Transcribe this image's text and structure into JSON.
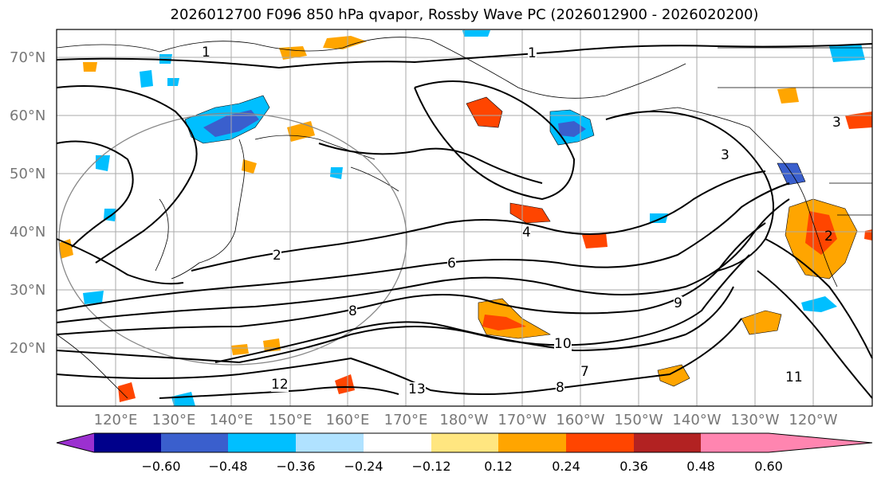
{
  "title": "2026012700 F096 850 hPa qvapor, Rossby Wave PC (2026012900 - 2026020200)",
  "lat_labels": [
    "70°N",
    "60°N",
    "50°N",
    "40°N",
    "30°N",
    "20°N"
  ],
  "lon_labels": [
    "120°E",
    "130°E",
    "140°E",
    "150°E",
    "160°E",
    "170°E",
    "180°W",
    "170°W",
    "160°W",
    "150°W",
    "140°W",
    "130°W",
    "120°W"
  ],
  "colorbar": {
    "ticks": [
      "−0.60",
      "−0.48",
      "−0.36",
      "−0.24",
      "−0.12",
      "0.12",
      "0.24",
      "0.36",
      "0.48",
      "0.60"
    ],
    "colors": [
      "#9b30d0",
      "#00008b",
      "#3a5fcd",
      "#00bfff",
      "#b0e2ff",
      "#ffffff",
      "#ffe680",
      "#ffa500",
      "#ff4500",
      "#b22222",
      "#ff85b0"
    ]
  },
  "contour_labels": [
    "1",
    "1",
    "2",
    "2",
    "3",
    "3",
    "4",
    "6",
    "8",
    "9",
    "10",
    "11",
    "12",
    "13",
    "7",
    "8"
  ],
  "colors": {
    "contour": "#000000",
    "grid": "#aaaaaa",
    "tick_text": "#777777"
  }
}
